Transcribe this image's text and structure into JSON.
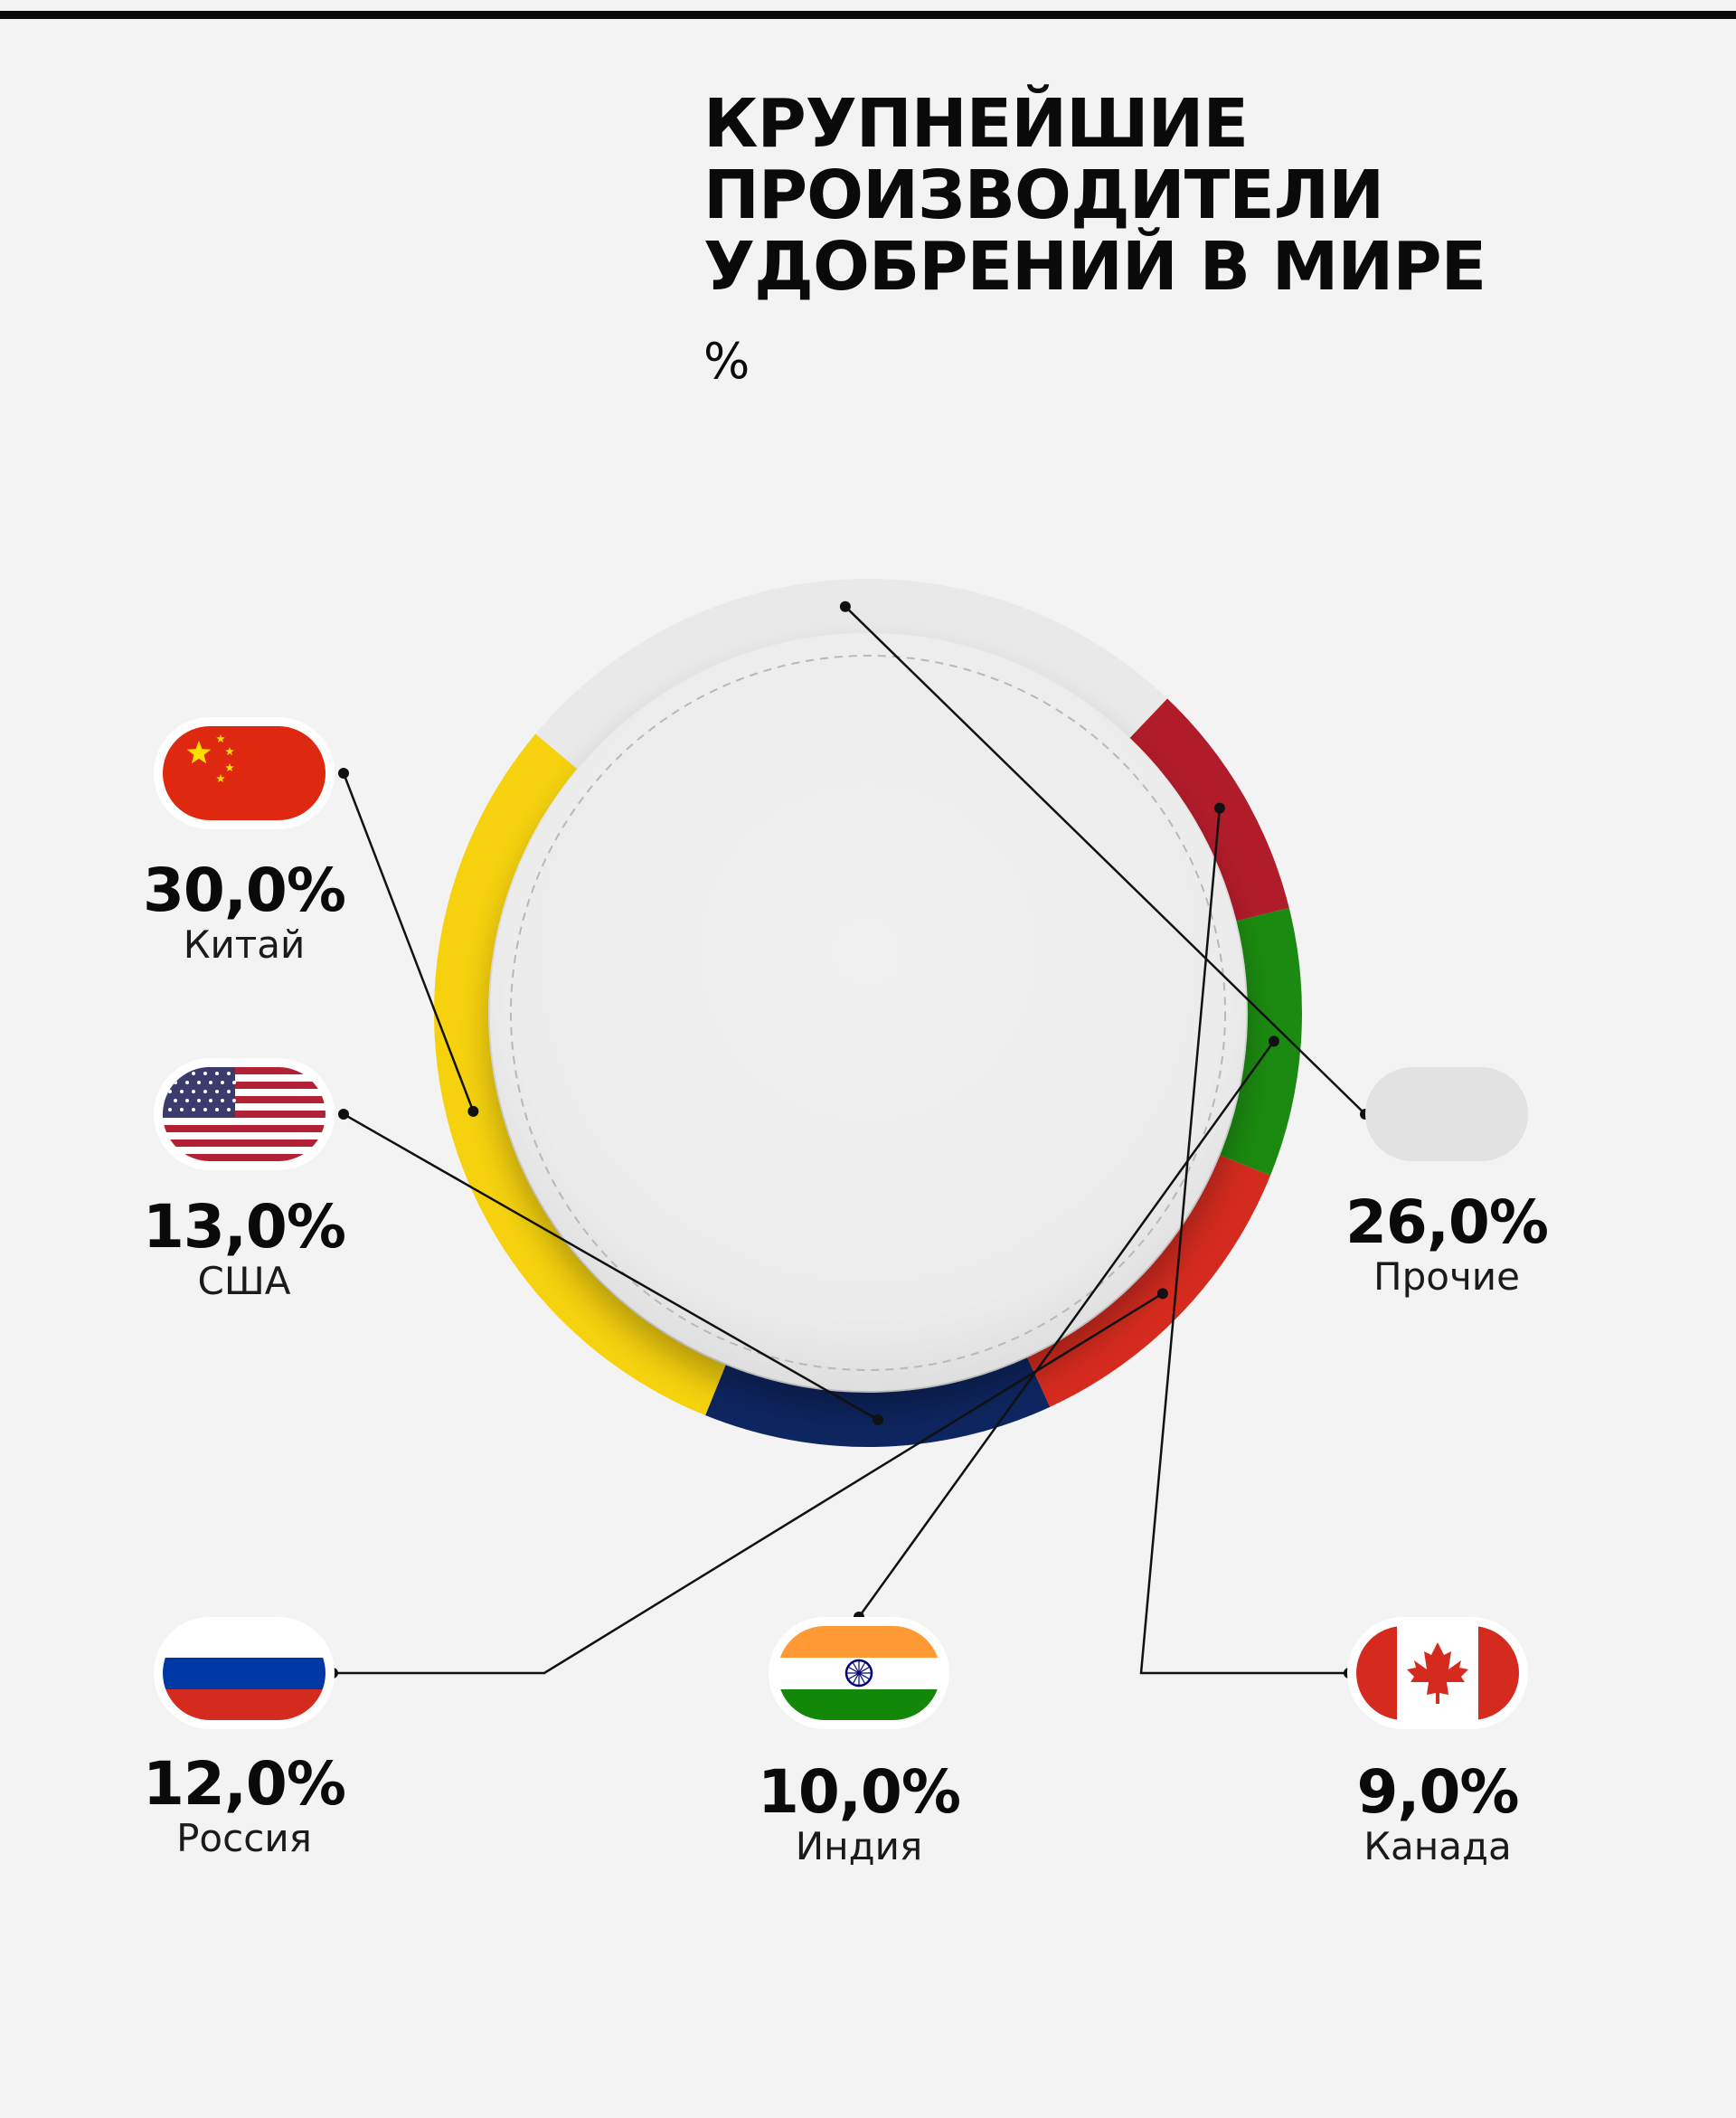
{
  "title_lines": [
    "КРУПНЕЙШИЕ",
    "ПРОИЗВОДИТЕЛИ",
    "УДОБРЕНИЙ В МИРЕ"
  ],
  "unit": "%",
  "chart_data": {
    "type": "pie",
    "title": "КРУПНЕЙШИЕ ПРОИЗВОДИТЕЛИ УДОБРЕНИЙ В МИРЕ",
    "unit": "%",
    "style": "donut",
    "categories": [
      "Китай",
      "США",
      "Россия",
      "Индия",
      "Канада",
      "Прочие"
    ],
    "values": [
      30.0,
      13.0,
      12.0,
      10.0,
      9.0,
      26.0
    ],
    "value_labels": [
      "30,0%",
      "13,0%",
      "12,0%",
      "10,0%",
      "9,0%",
      "26,0%"
    ],
    "colors": [
      "#f6d20e",
      "#0d2560",
      "#d52b1e",
      "#1b8a10",
      "#b11c2a",
      "#e9e9e9"
    ],
    "flags": [
      "china-flag",
      "usa-flag",
      "russia-flag",
      "india-flag",
      "canada-flag",
      "blank-flag"
    ]
  }
}
